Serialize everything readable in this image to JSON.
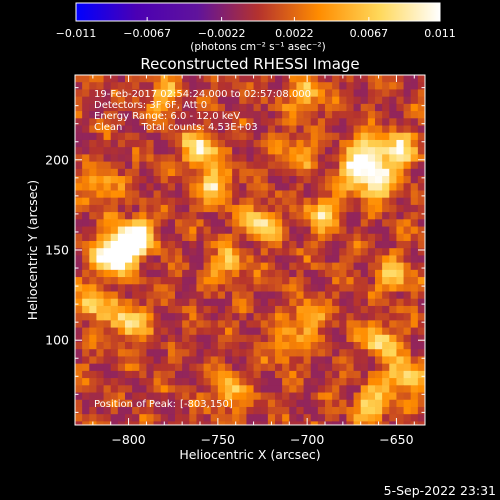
{
  "chart_data": {
    "type": "heatmap",
    "title": "Reconstructed RHESSI Image",
    "xlabel": "Heliocentric X (arcsec)",
    "ylabel": "Heliocentric Y (arcsec)",
    "xlim": [
      -830,
      -634
    ],
    "ylim": [
      53,
      247
    ],
    "x_ticks": [
      -800,
      -750,
      -700,
      -650
    ],
    "x_tick_labels": [
      "−800",
      "−750",
      "−700",
      "−650"
    ],
    "y_ticks": [
      100,
      150,
      200
    ],
    "y_tick_labels": [
      "100",
      "150",
      "200"
    ],
    "colorbar": {
      "range": [
        -0.011,
        0.011
      ],
      "ticks": [
        -0.011,
        -0.0067,
        -0.0022,
        0.0022,
        0.0067,
        0.011
      ],
      "tick_labels": [
        "−0.011",
        "−0.0067",
        "−0.0022",
        "0.0022",
        "0.0067",
        "0.011"
      ],
      "unit_label": "(photons cm⁻² s⁻¹ asec⁻²)",
      "colors": [
        "#0000ff",
        "#4b00b4",
        "#60139c",
        "#b4322e",
        "#ff8c00",
        "#ffd85a",
        "#ffffff"
      ]
    },
    "annotations": [
      "19-Feb-2017 02:54:24.000 to 02:57:08.000",
      "Detectors: 3F 6F, Att 0",
      "Energy Range: 6.0 - 12.0 keV",
      "Clean      Total counts: 4.53E+03"
    ],
    "peak_label": "Position of Peak:",
    "peak_value": "[-803,150]",
    "peak_position": [
      -803,
      150
    ],
    "grid": false,
    "pixel_size_arcsec": 4,
    "field_min": -0.0015,
    "field_max": 0.0115,
    "hotspots": [
      {
        "x": -795,
        "y": 158,
        "value": 0.011
      },
      {
        "x": -803,
        "y": 150,
        "value": 0.0115
      },
      {
        "x": -811,
        "y": 146,
        "value": 0.01
      },
      {
        "x": -760,
        "y": 206,
        "value": 0.009
      },
      {
        "x": -752,
        "y": 186,
        "value": 0.008
      },
      {
        "x": -727,
        "y": 164,
        "value": 0.009
      },
      {
        "x": -692,
        "y": 170,
        "value": 0.007
      },
      {
        "x": -672,
        "y": 194,
        "value": 0.0105
      },
      {
        "x": -660,
        "y": 186,
        "value": 0.0095
      },
      {
        "x": -648,
        "y": 204,
        "value": 0.009
      },
      {
        "x": -664,
        "y": 206,
        "value": 0.008
      },
      {
        "x": -800,
        "y": 110,
        "value": 0.009
      },
      {
        "x": -820,
        "y": 120,
        "value": 0.008
      },
      {
        "x": -744,
        "y": 142,
        "value": 0.006
      },
      {
        "x": -700,
        "y": 112,
        "value": 0.006
      },
      {
        "x": -651,
        "y": 136,
        "value": 0.007
      },
      {
        "x": -660,
        "y": 100,
        "value": 0.008
      },
      {
        "x": -646,
        "y": 80,
        "value": 0.009
      },
      {
        "x": -664,
        "y": 64,
        "value": 0.008
      },
      {
        "x": -744,
        "y": 72,
        "value": 0.006
      },
      {
        "x": -712,
        "y": 96,
        "value": 0.0045
      },
      {
        "x": -780,
        "y": 236,
        "value": 0.006
      },
      {
        "x": -700,
        "y": 236,
        "value": 0.006
      },
      {
        "x": -816,
        "y": 184,
        "value": 0.006
      },
      {
        "x": -704,
        "y": 205,
        "value": 0.005
      }
    ]
  },
  "footer": {
    "date_stamp": "5-Sep-2022 23:31"
  }
}
